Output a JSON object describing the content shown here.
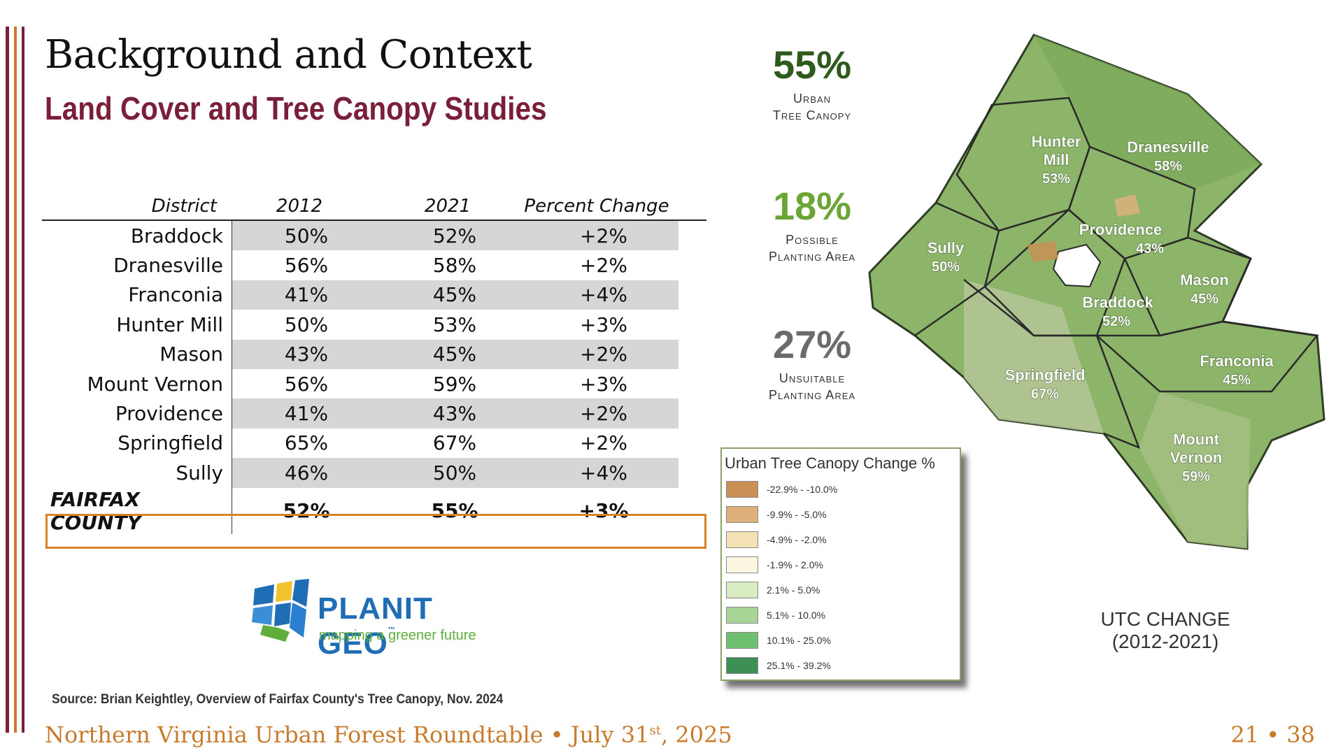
{
  "title": "Background and Context",
  "subtitle": "Land Cover and Tree Canopy Studies",
  "table": {
    "headers": [
      "District",
      "2012",
      "2021",
      "Percent Change"
    ],
    "rows": [
      [
        "Braddock",
        "50%",
        "52%",
        "+2%"
      ],
      [
        "Dranesville",
        "56%",
        "58%",
        "+2%"
      ],
      [
        "Franconia",
        "41%",
        "45%",
        "+4%"
      ],
      [
        "Hunter Mill",
        "50%",
        "53%",
        "+3%"
      ],
      [
        "Mason",
        "43%",
        "45%",
        "+2%"
      ],
      [
        "Mount Vernon",
        "56%",
        "59%",
        "+3%"
      ],
      [
        "Providence",
        "41%",
        "43%",
        "+2%"
      ],
      [
        "Springfield",
        "65%",
        "67%",
        "+2%"
      ],
      [
        "Sully",
        "46%",
        "50%",
        "+4%"
      ]
    ],
    "total": [
      "FAIRFAX COUNTY",
      "52%",
      "55%",
      "+3%"
    ]
  },
  "logo": {
    "name": "PLANIT GEO",
    "tm": "™",
    "tagline": "mapping a greener future"
  },
  "source": "Source: Brian Keightley, Overview of Fairfax County's Tree Canopy, Nov. 2024",
  "footer": {
    "text": "Northern Virginia Urban Forest Roundtable • July 31",
    "sup": "st",
    "tail": ", 2025"
  },
  "page": "21 • 38",
  "stats": [
    {
      "pct": "55%",
      "line1": "Urban",
      "line2": "Tree Canopy"
    },
    {
      "pct": "18%",
      "line1": "Possible",
      "line2": "Planting Area"
    },
    {
      "pct": "27%",
      "line1": "Unsuitable",
      "line2": "Planting Area"
    }
  ],
  "legend": {
    "title": "Urban Tree Canopy Change %",
    "items": [
      {
        "label": "-22.9% - -10.0%",
        "color": "#c98f55"
      },
      {
        "label": "-9.9% - -5.0%",
        "color": "#ddb07c"
      },
      {
        "label": "-4.9% - -2.0%",
        "color": "#f4e2b6"
      },
      {
        "label": "-1.9% - 2.0%",
        "color": "#fbf6e2"
      },
      {
        "label": "2.1% - 5.0%",
        "color": "#d9ebc3"
      },
      {
        "label": "5.1% - 10.0%",
        "color": "#a8d495"
      },
      {
        "label": "10.1% - 25.0%",
        "color": "#6fbf70"
      },
      {
        "label": "25.1% - 39.2%",
        "color": "#3e8f55"
      }
    ]
  },
  "map": {
    "labels": [
      {
        "name": "Hunter",
        "name2": "Mill",
        "pct": "53%"
      },
      {
        "name": "Dranesville",
        "pct": "58%"
      },
      {
        "name": "Sully",
        "pct": "50%"
      },
      {
        "name": "Providence",
        "pct": "43%"
      },
      {
        "name": "Mason",
        "pct": "45%"
      },
      {
        "name": "Braddock",
        "pct": "52%"
      },
      {
        "name": "Springfield",
        "pct": "67%"
      },
      {
        "name": "Franconia",
        "pct": "45%"
      },
      {
        "name": "Mount",
        "name2": "Vernon",
        "pct": "59%"
      }
    ],
    "caption1": "UTC CHANGE",
    "caption2": "(2012-2021)"
  },
  "colors": {
    "maroon": "#7a1f3a",
    "orange": "#c97a2b",
    "mapGreen": "#7fae5e"
  }
}
